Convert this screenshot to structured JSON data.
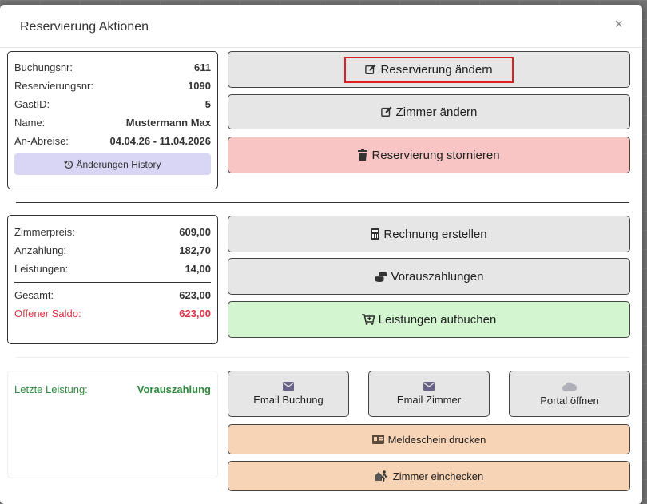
{
  "dialog": {
    "title": "Reservierung Aktionen",
    "close_glyph": "×"
  },
  "booking_info": {
    "rows": [
      {
        "label": "Buchungsnr:",
        "value": "611"
      },
      {
        "label": "Reservierungsnr:",
        "value": "1090"
      },
      {
        "label": "GastID:",
        "value": "5"
      },
      {
        "label": "Name:",
        "value": "Mustermann Max"
      },
      {
        "label": "An-Abreise:",
        "value": "04.04.26 - 11.04.2026"
      }
    ],
    "history_button": "Änderungen History"
  },
  "billing_info": {
    "rows": [
      {
        "label": "Zimmerpreis:",
        "value": "609,00"
      },
      {
        "label": "Anzahlung:",
        "value": "182,70"
      },
      {
        "label": "Leistungen:",
        "value": "14,00"
      }
    ],
    "total": {
      "label": "Gesamt:",
      "value": "623,00"
    },
    "balance": {
      "label": "Offener Saldo:",
      "value": "623,00"
    }
  },
  "last_service": {
    "label": "Letzte Leistung:",
    "value": "Vorauszahlung"
  },
  "actions": {
    "edit_reservation": "Reservierung ändern",
    "change_room": "Zimmer ändern",
    "cancel_reservation": "Reservierung stornieren",
    "create_invoice": "Rechnung erstellen",
    "prepayments": "Vorauszahlungen",
    "book_services": "Leistungen aufbuchen",
    "email_booking": "Email Buchung",
    "email_room": "Email Zimmer",
    "open_portal": "Portal öffnen",
    "print_registration": "Meldeschein drucken",
    "check_in_room": "Zimmer einchecken"
  },
  "colors": {
    "danger_bg": "#f8c4c4",
    "success_bg": "#d3f5d0",
    "warning_bg": "#f8d4b6",
    "history_bg": "#d9d5f5",
    "highlight_border": "#e02020",
    "balance_text": "#dc3545",
    "last_service_text": "#2e8b3e"
  },
  "icons": {
    "edit": "edit-icon",
    "trash": "trash-icon",
    "calculator": "calculator-icon",
    "coins": "coins-icon",
    "cart": "cart-plus-icon",
    "mail": "envelope-icon",
    "cloud": "cloud-icon",
    "id_card": "id-card-icon",
    "check_in": "person-walking-door-icon",
    "history": "history-icon"
  }
}
